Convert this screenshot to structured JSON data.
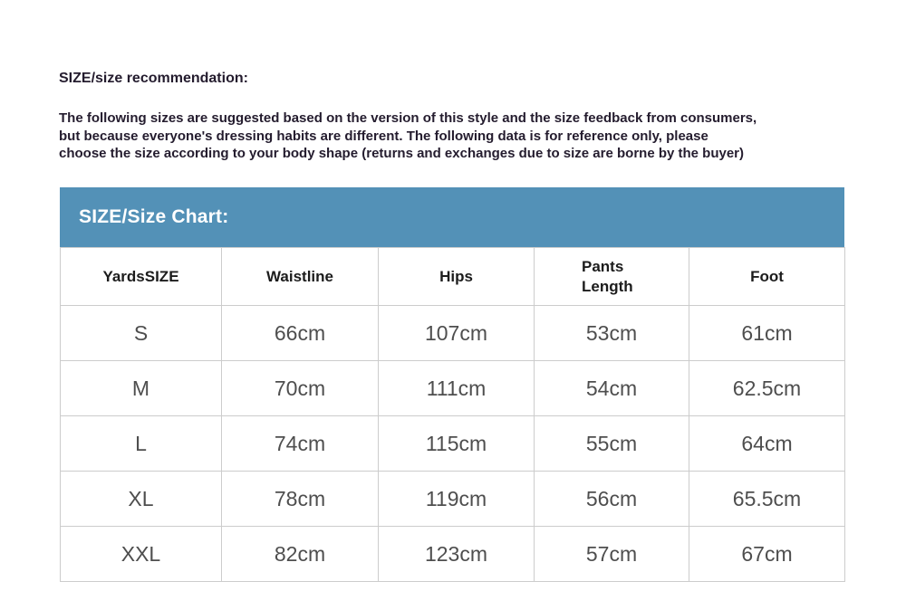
{
  "intro": {
    "heading": "SIZE/size recommendation:",
    "lines": [
      "The following sizes are suggested based on the version of this style and the size feedback from consumers,",
      "but because everyone's dressing habits are different. The following data is for reference only, please",
      "choose the size according to your body shape (returns and exchanges due to size are borne by the buyer)"
    ]
  },
  "size_chart": {
    "title": "SIZE/Size Chart:",
    "title_bar_color": "#5391b7",
    "title_text_color": "#ffffff",
    "border_color": "#cccccc",
    "columns": [
      "YardsSIZE",
      "Waistline",
      "Hips",
      "Pants Length",
      "Foot"
    ],
    "rows": [
      {
        "size": "S",
        "waistline": "66cm",
        "hips": "107cm",
        "pants_length": "53cm",
        "foot": "61cm"
      },
      {
        "size": "M",
        "waistline": "70cm",
        "hips": "111cm",
        "pants_length": "54cm",
        "foot": "62.5cm"
      },
      {
        "size": "L",
        "waistline": "74cm",
        "hips": "115cm",
        "pants_length": "55cm",
        "foot": "64cm"
      },
      {
        "size": "XL",
        "waistline": "78cm",
        "hips": "119cm",
        "pants_length": "56cm",
        "foot": "65.5cm"
      },
      {
        "size": "XXL",
        "waistline": "82cm",
        "hips": "123cm",
        "pants_length": "57cm",
        "foot": "67cm"
      }
    ]
  }
}
